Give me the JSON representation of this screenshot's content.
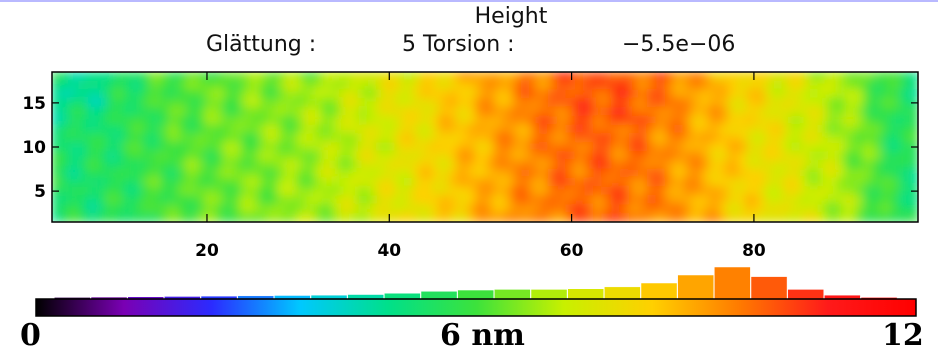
{
  "chart_data": {
    "type": "heatmap",
    "title": "Height",
    "subtitle_parts": [
      "Glättung :",
      "5 Torsion :",
      "−5.5e−06"
    ],
    "x_ticks": [
      "20",
      "40",
      "60",
      "80"
    ],
    "x_tick_values": [
      20,
      40,
      60,
      80
    ],
    "y_ticks": [
      "15",
      "10",
      "5"
    ],
    "y_tick_values": [
      15,
      10,
      5
    ],
    "xlim": [
      3,
      98
    ],
    "ylim": [
      1.5,
      18.5
    ],
    "colorbar": {
      "min_label": "0",
      "mid_label": "6 nm",
      "max_label": "12",
      "range": [
        0,
        12
      ],
      "colormap": [
        "#000000",
        "#7a00b4",
        "#2b2bff",
        "#00c8ff",
        "#00e08a",
        "#3ce23c",
        "#c8f000",
        "#ffd000",
        "#ff7a00",
        "#ff1a1a",
        "#ff0000"
      ]
    },
    "histogram": {
      "bin_values_nm": [
        0.5,
        1.0,
        1.5,
        2.0,
        2.5,
        3.0,
        3.5,
        4.0,
        4.5,
        5.0,
        5.5,
        6.0,
        6.5,
        7.0,
        7.5,
        8.0,
        8.5,
        9.0,
        9.5,
        10.0,
        10.5,
        11.0,
        11.5
      ],
      "relative_counts": [
        0.05,
        0.06,
        0.07,
        0.08,
        0.09,
        0.1,
        0.11,
        0.12,
        0.14,
        0.18,
        0.24,
        0.28,
        0.3,
        0.3,
        0.32,
        0.38,
        0.5,
        0.75,
        1.0,
        0.7,
        0.3,
        0.12,
        0.05
      ]
    }
  }
}
